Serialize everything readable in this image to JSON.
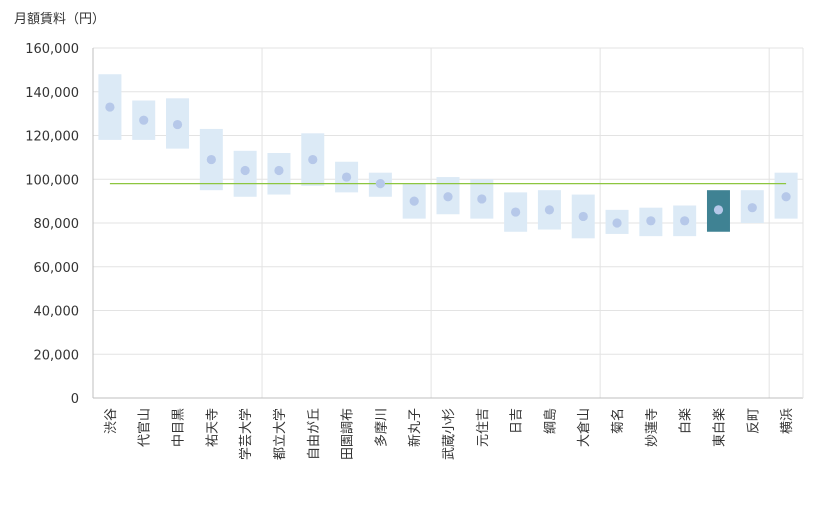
{
  "chart_data": {
    "type": "range-dot",
    "ylabel": "月額賃料（円）",
    "ylim": [
      0,
      160000
    ],
    "yticks": [
      0,
      20000,
      40000,
      60000,
      80000,
      100000,
      120000,
      140000,
      160000
    ],
    "ytick_labels": [
      "0",
      "20,000",
      "40,000",
      "60,000",
      "80,000",
      "100,000",
      "120,000",
      "140,000",
      "160,000"
    ],
    "categories": [
      "渋谷",
      "代官山",
      "中目黒",
      "祐天寺",
      "学芸大学",
      "都立大学",
      "自由が丘",
      "田園調布",
      "多摩川",
      "新丸子",
      "武蔵小杉",
      "元住吉",
      "日吉",
      "綱島",
      "大倉山",
      "菊名",
      "妙蓮寺",
      "白楽",
      "東白楽",
      "反町",
      "横浜"
    ],
    "series": [
      {
        "name": "low",
        "values": [
          118000,
          118000,
          114000,
          95000,
          92000,
          93000,
          97000,
          94000,
          92000,
          82000,
          84000,
          82000,
          76000,
          77000,
          73000,
          75000,
          74000,
          74000,
          76000,
          80000,
          82000
        ]
      },
      {
        "name": "high",
        "values": [
          148000,
          136000,
          137000,
          123000,
          113000,
          112000,
          121000,
          108000,
          103000,
          98000,
          101000,
          100000,
          94000,
          95000,
          93000,
          86000,
          87000,
          88000,
          95000,
          95000,
          103000
        ]
      },
      {
        "name": "mean",
        "values": [
          133000,
          127000,
          125000,
          109000,
          104000,
          104000,
          109000,
          101000,
          98000,
          90000,
          92000,
          91000,
          85000,
          86000,
          83000,
          80000,
          81000,
          81000,
          86000,
          87000,
          92000
        ]
      }
    ],
    "reference_line": 98000,
    "highlight": "東白楽",
    "group_separators_after": [
      "学芸大学",
      "新丸子",
      "大倉山",
      "反町"
    ],
    "colors": {
      "range": "#dceaf6",
      "dot": "#b6c8e9",
      "highlight_range": "#3f8293",
      "highlight_dot": "#b6c8e9",
      "reference": "#8dc63f",
      "grid": "#e3e3e3",
      "axis": "#bfbfbf"
    }
  }
}
